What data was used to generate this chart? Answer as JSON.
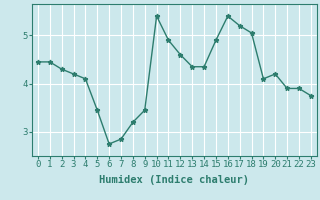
{
  "x": [
    0,
    1,
    2,
    3,
    4,
    5,
    6,
    7,
    8,
    9,
    10,
    11,
    12,
    13,
    14,
    15,
    16,
    17,
    18,
    19,
    20,
    21,
    22,
    23
  ],
  "y": [
    4.45,
    4.45,
    4.3,
    4.2,
    4.1,
    3.45,
    2.75,
    2.85,
    3.2,
    3.45,
    5.4,
    4.9,
    4.6,
    4.35,
    4.35,
    4.9,
    5.4,
    5.2,
    5.05,
    4.1,
    4.2,
    3.9,
    3.9,
    3.75
  ],
  "line_color": "#2d7d6e",
  "marker": "*",
  "marker_size": 3.5,
  "background_color": "#cce8ec",
  "grid_color": "#ffffff",
  "xlabel": "Humidex (Indice chaleur)",
  "xlim": [
    -0.5,
    23.5
  ],
  "ylim": [
    2.5,
    5.65
  ],
  "yticks": [
    3,
    4,
    5
  ],
  "xticks": [
    0,
    1,
    2,
    3,
    4,
    5,
    6,
    7,
    8,
    9,
    10,
    11,
    12,
    13,
    14,
    15,
    16,
    17,
    18,
    19,
    20,
    21,
    22,
    23
  ],
  "xlabel_fontsize": 7.5,
  "tick_fontsize": 6.5,
  "line_width": 1.0
}
